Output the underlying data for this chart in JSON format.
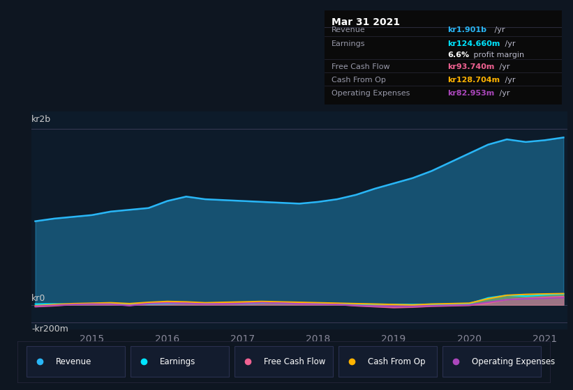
{
  "background_color": "#0e1621",
  "plot_bg_color": "#0d1b2a",
  "info_box_bg": "#0a0a0a",
  "ylabel_top": "kr2b",
  "ylabel_zero": "kr0",
  "ylabel_neg": "-kr200m",
  "x_years": [
    2014.25,
    2014.5,
    2014.75,
    2015.0,
    2015.25,
    2015.5,
    2015.75,
    2016.0,
    2016.25,
    2016.5,
    2016.75,
    2017.0,
    2017.25,
    2017.5,
    2017.75,
    2018.0,
    2018.25,
    2018.5,
    2018.75,
    2019.0,
    2019.25,
    2019.5,
    2019.75,
    2020.0,
    2020.25,
    2020.5,
    2020.75,
    2021.0,
    2021.25
  ],
  "revenue": [
    950,
    980,
    1000,
    1020,
    1060,
    1080,
    1100,
    1180,
    1230,
    1200,
    1190,
    1180,
    1170,
    1160,
    1150,
    1170,
    1200,
    1250,
    1320,
    1380,
    1440,
    1520,
    1620,
    1720,
    1820,
    1880,
    1850,
    1870,
    1901
  ],
  "earnings": [
    10,
    12,
    8,
    15,
    18,
    12,
    10,
    14,
    20,
    16,
    14,
    12,
    22,
    20,
    18,
    16,
    12,
    10,
    8,
    6,
    5,
    8,
    10,
    14,
    80,
    110,
    100,
    115,
    124.66
  ],
  "free_cash_flow": [
    -20,
    -10,
    5,
    15,
    10,
    -5,
    20,
    30,
    25,
    10,
    15,
    20,
    30,
    25,
    15,
    10,
    5,
    -10,
    -20,
    -30,
    -25,
    -15,
    -10,
    -5,
    20,
    60,
    75,
    85,
    93.74
  ],
  "cash_from_op": [
    -10,
    5,
    15,
    20,
    25,
    15,
    30,
    40,
    35,
    25,
    30,
    35,
    40,
    35,
    30,
    25,
    20,
    15,
    10,
    5,
    0,
    10,
    15,
    20,
    70,
    110,
    120,
    125,
    128.704
  ],
  "operating_expenses": [
    -15,
    -5,
    5,
    10,
    8,
    -8,
    15,
    20,
    18,
    10,
    12,
    15,
    25,
    20,
    12,
    8,
    5,
    -5,
    -15,
    -20,
    -18,
    -10,
    -5,
    0,
    30,
    60,
    70,
    75,
    82.953
  ],
  "revenue_color": "#29b6f6",
  "earnings_color": "#00e5ff",
  "free_cash_flow_color": "#f06292",
  "cash_from_op_color": "#ffb300",
  "operating_expenses_color": "#ab47bc",
  "x_ticks": [
    2015,
    2016,
    2017,
    2018,
    2019,
    2020,
    2021
  ],
  "x_labels": [
    "2015",
    "2016",
    "2017",
    "2018",
    "2019",
    "2020",
    "2021"
  ],
  "ylim_min": -280,
  "ylim_max": 2200,
  "info_box": {
    "title": "Mar 31 2021",
    "rows": [
      {
        "label": "Revenue",
        "value": "kr1.901b",
        "value_color": "#29b6f6",
        "suffix": " /yr",
        "divider": false
      },
      {
        "label": "Earnings",
        "value": "kr124.660m",
        "value_color": "#00e5ff",
        "suffix": " /yr",
        "divider": true
      },
      {
        "label": "",
        "value": "6.6%",
        "value_color": "#ffffff",
        "suffix": " profit margin",
        "divider": false
      },
      {
        "label": "Free Cash Flow",
        "value": "kr93.740m",
        "value_color": "#f06292",
        "suffix": " /yr",
        "divider": true
      },
      {
        "label": "Cash From Op",
        "value": "kr128.704m",
        "value_color": "#ffb300",
        "suffix": " /yr",
        "divider": true
      },
      {
        "label": "Operating Expenses",
        "value": "kr82.953m",
        "value_color": "#ab47bc",
        "suffix": " /yr",
        "divider": true
      }
    ]
  },
  "legend_items": [
    {
      "label": "Revenue",
      "color": "#29b6f6"
    },
    {
      "label": "Earnings",
      "color": "#00e5ff"
    },
    {
      "label": "Free Cash Flow",
      "color": "#f06292"
    },
    {
      "label": "Cash From Op",
      "color": "#ffb300"
    },
    {
      "label": "Operating Expenses",
      "color": "#ab47bc"
    }
  ]
}
